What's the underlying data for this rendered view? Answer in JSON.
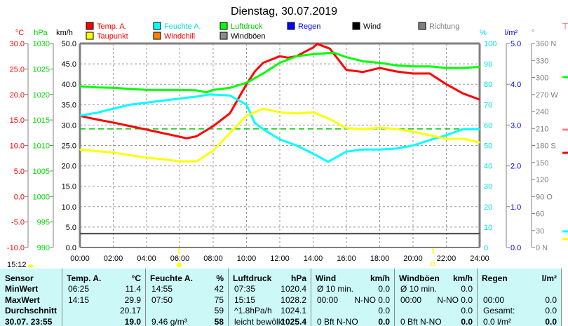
{
  "chart_data": {
    "type": "line",
    "title": "Dienstag, 30.07.2019",
    "x_range": [
      0,
      24
    ],
    "x_ticks": [
      "00:00",
      "02:00",
      "04:00",
      "06:00",
      "08:00",
      "10:00",
      "12:00",
      "14:00",
      "16:00",
      "18:00",
      "20:00",
      "22:00",
      "24:00"
    ],
    "axes": {
      "temp": {
        "unit": "°C",
        "range": [
          -10,
          30
        ],
        "ticks": [
          "30.0",
          "25.0",
          "20.0",
          "15.0",
          "10.0",
          "5.0",
          "0.0",
          "-5.0",
          "-10.0"
        ],
        "color": "#ff0000"
      },
      "pressure": {
        "unit": "hPa",
        "range": [
          990,
          1030
        ],
        "ticks": [
          "1030",
          "1025",
          "1020",
          "1015",
          "1010",
          "1005",
          "1000",
          "995",
          "990"
        ],
        "color": "#00dd00"
      },
      "wind": {
        "unit": "km/h",
        "range": [
          0,
          50
        ],
        "ticks": [
          "50.0",
          "45.0",
          "40.0",
          "35.0",
          "30.0",
          "25.0",
          "20.0",
          "15.0",
          "10.0",
          "5.0",
          "0.0"
        ],
        "color": "#000000"
      },
      "humidity": {
        "unit": "%",
        "range": [
          0,
          100
        ],
        "ticks": [
          "100",
          "90",
          "80",
          "70",
          "60",
          "50",
          "40",
          "30",
          "20",
          "10",
          "0"
        ],
        "color": "#00e0e0"
      },
      "rain": {
        "unit": "l/m²",
        "range": [
          0,
          5
        ],
        "ticks": [
          "5.0",
          "4.0",
          "3.0",
          "2.0",
          "1.0",
          "0.0"
        ],
        "color": "#0000ff"
      },
      "direction": {
        "unit": "°",
        "range": [
          0,
          360
        ],
        "ticks": [
          "360 N",
          "330",
          "300",
          "270 W",
          "240",
          "210",
          "180 S",
          "150",
          "120",
          "90  O",
          "60",
          "30",
          "0   N"
        ],
        "color": "#808080"
      }
    },
    "legend": [
      {
        "label": "Temp. A.",
        "color": "#ff0000",
        "text_color": "#ff0000"
      },
      {
        "label": "Feuchte A.",
        "color": "#00ffff",
        "text_color": "#00e0e0"
      },
      {
        "label": "Luftdruck",
        "color": "#00ff00",
        "text_color": "#00cc00"
      },
      {
        "label": "Regen",
        "color": "#0000ff",
        "text_color": "#0000ff"
      },
      {
        "label": "Wind",
        "color": "#000000",
        "text_color": "#000000"
      },
      {
        "label": "Richtung",
        "color": "#808080",
        "text_color": "#808080"
      },
      {
        "label": "Taupunkt",
        "color": "#ffff00",
        "text_color": "#ff0000"
      },
      {
        "label": "Windchill",
        "color": "#ff8000",
        "text_color": "#ff0000"
      },
      {
        "label": "Windböen",
        "color": "#908890",
        "text_color": "#000000"
      }
    ],
    "series": [
      {
        "name": "Temp. A.",
        "axis": "temp",
        "color": "#ff0000",
        "x": [
          0,
          1,
          2,
          3,
          4,
          5,
          6,
          6.4,
          7,
          8,
          9,
          10,
          10.5,
          11,
          12,
          12.5,
          13,
          14,
          14.25,
          15,
          16,
          17,
          18,
          19,
          20,
          21,
          22,
          23,
          24
        ],
        "y": [
          15.8,
          15.1,
          14.5,
          13.8,
          13.1,
          12.4,
          11.7,
          11.4,
          11.8,
          13.8,
          16.3,
          22,
          24.5,
          26.2,
          27.5,
          27.2,
          27.5,
          29.2,
          29.9,
          29,
          24.8,
          24.4,
          25.2,
          24.5,
          24.1,
          24.1,
          22,
          20.2,
          19.0
        ]
      },
      {
        "name": "Feuchte A.",
        "axis": "humidity",
        "color": "#00ffff",
        "x": [
          0,
          1,
          2,
          3,
          4,
          5,
          6,
          7,
          7.8,
          9,
          10,
          10.5,
          11,
          12,
          13,
          14,
          14.9,
          16,
          17,
          18,
          19,
          20,
          21,
          22,
          23,
          24
        ],
        "y": [
          64.6,
          66,
          68,
          70,
          71,
          72,
          73,
          74,
          75,
          74.5,
          70,
          61,
          58,
          53,
          50,
          46,
          42,
          47,
          48,
          48,
          48.5,
          50,
          52.6,
          55,
          58,
          58
        ]
      },
      {
        "name": "Taupunkt",
        "axis": "temp",
        "color": "#ffff00",
        "x": [
          0,
          1,
          2,
          3,
          4,
          5,
          6,
          7,
          8,
          9,
          10,
          11,
          12,
          13,
          14,
          15,
          16,
          17,
          18,
          19,
          20,
          21,
          22,
          23,
          24
        ],
        "y": [
          9.2,
          8.9,
          8.6,
          8.1,
          7.6,
          7.3,
          6.9,
          6.9,
          9,
          12.4,
          15.8,
          17.2,
          16.5,
          16.3,
          16.5,
          15.2,
          13.4,
          13.2,
          13.5,
          13.2,
          12.7,
          12.0,
          11.3,
          11.3,
          10.6
        ]
      },
      {
        "name": "Luftdruck",
        "axis": "pressure",
        "color": "#00ff00",
        "x": [
          0,
          1,
          2,
          3,
          4,
          5,
          6,
          7,
          7.6,
          8,
          9,
          10,
          11,
          12,
          13,
          14,
          15.25,
          16,
          17,
          18,
          19,
          20,
          21,
          22,
          23,
          24
        ],
        "y": [
          1021.6,
          1021.4,
          1021.3,
          1021.1,
          1020.9,
          1020.9,
          1020.9,
          1020.8,
          1020.4,
          1020.9,
          1021.3,
          1022.3,
          1024.1,
          1026.2,
          1027.5,
          1027.9,
          1028.2,
          1027.3,
          1026.5,
          1026.2,
          1025.7,
          1025.5,
          1025.5,
          1025.2,
          1025.2,
          1025.4
        ]
      }
    ],
    "reference_lines": [
      {
        "axis": "pressure",
        "value": 1013.25,
        "color": "#00cc00",
        "style": "dashed"
      },
      {
        "axis": "wind",
        "value": 3.4,
        "color": "#404040",
        "style": "solid"
      }
    ],
    "sunrise_hour": 5.95,
    "sunset_hour": 21.2,
    "moon_time": "15:12"
  },
  "table": {
    "headers": [
      [
        "Sensor",
        ""
      ],
      [
        "Temp. A.",
        "°C"
      ],
      [
        "Feuchte A.",
        "%"
      ],
      [
        "Luftdruck",
        "hPa"
      ],
      [
        "Wind",
        "km/h"
      ],
      [
        "Windböen",
        "km/h"
      ],
      [
        "Regen",
        "l/m²"
      ]
    ],
    "row_labels": [
      "MinWert",
      "MaxWert",
      "Durchschnitt",
      "30.07. 23:55"
    ],
    "rows": [
      [
        [
          "06:25",
          "11.4"
        ],
        [
          "14:55",
          "42"
        ],
        [
          "07:35",
          "1020.4"
        ],
        [
          "Ø 10 min.",
          "0.0"
        ],
        [
          "Ø 10 min.",
          "0.0"
        ],
        [
          "",
          ""
        ]
      ],
      [
        [
          "14:15",
          "29.9"
        ],
        [
          "07:50",
          "75"
        ],
        [
          "15:15",
          "1028.2"
        ],
        [
          "00:00",
          "N-NO 0.0"
        ],
        [
          "00:00",
          "N-NO 0.0"
        ],
        [
          "00:00",
          "0.0"
        ]
      ],
      [
        [
          "",
          "20.17"
        ],
        [
          "",
          "59"
        ],
        [
          "^1.8hPa/h",
          "1024.1"
        ],
        [
          "",
          "0.0"
        ],
        [
          "",
          "0.0"
        ],
        [
          "Gesamt:",
          "0.0"
        ]
      ],
      [
        [
          "",
          "19.0"
        ],
        [
          "9.46 g/m³",
          "58"
        ],
        [
          "leicht bewölkt",
          "1025.4"
        ],
        [
          "0 Bft N-NO",
          "0.0"
        ],
        [
          "0 Bft N-NO",
          "0.0"
        ],
        [
          "0.0 l/m²",
          "0.0"
        ]
      ]
    ]
  },
  "side_panel": {
    "label": "T"
  }
}
